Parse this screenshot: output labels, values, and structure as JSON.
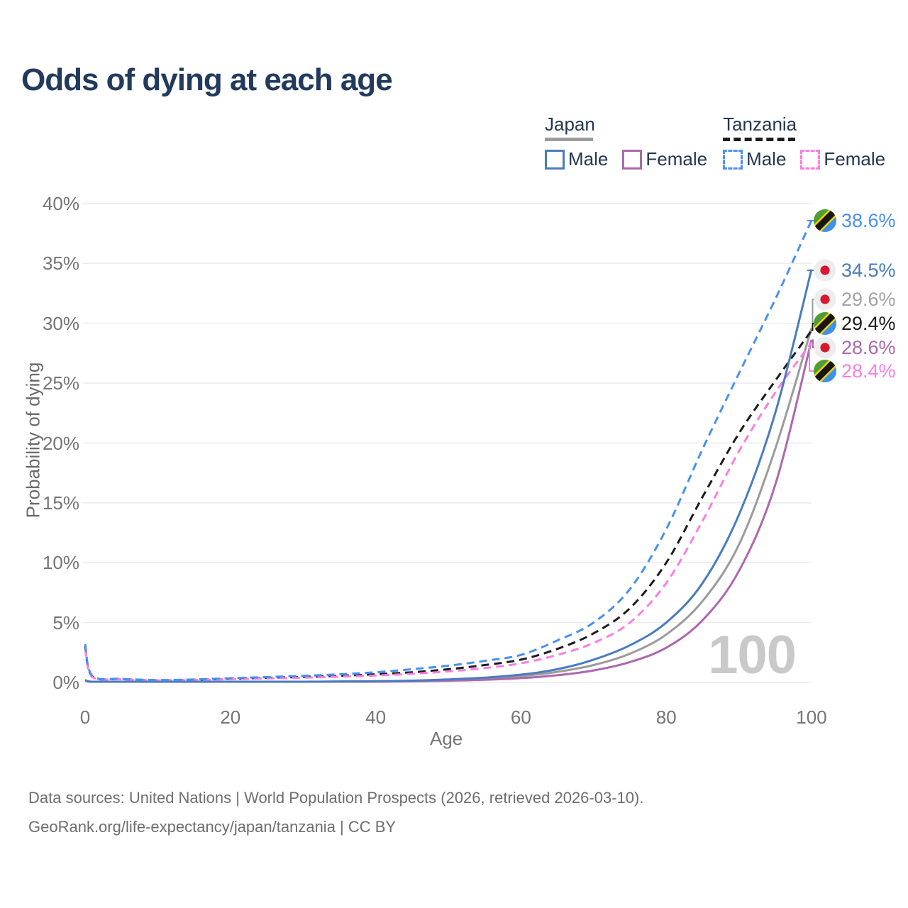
{
  "title": "Odds of dying at each age",
  "watermark_age": "100",
  "legend": {
    "groups": [
      {
        "label": "Japan",
        "line_style": "solid",
        "line_color": "#9b9b9b",
        "items": [
          {
            "label": "Male",
            "color": "#4a7cbe"
          },
          {
            "label": "Female",
            "color": "#ad68ad"
          }
        ]
      },
      {
        "label": "Tanzania",
        "line_style": "dashed",
        "line_color": "#1c1c1c",
        "items": [
          {
            "label": "Male",
            "color": "#4990f2"
          },
          {
            "label": "Female",
            "color": "#fb7de2"
          }
        ]
      }
    ]
  },
  "footer": {
    "line1": "Data sources: United Nations | World Population Prospects (2026, retrieved 2026-03-10).",
    "line2": "GeoRank.org/life-expectancy/japan/tanzania | CC BY"
  },
  "chart_data": {
    "type": "line",
    "title": "Odds of dying at each age",
    "xlabel": "Age",
    "ylabel": "Probability of dying",
    "xlim": [
      0,
      100
    ],
    "ylim": [
      0,
      40
    ],
    "x_ticks": [
      0,
      20,
      40,
      60,
      80,
      100
    ],
    "y_ticks": [
      "0%",
      "5%",
      "10%",
      "15%",
      "20%",
      "25%",
      "30%",
      "35%",
      "40%"
    ],
    "grid": "horizontal",
    "legend_position": "top-right",
    "ages": [
      0,
      1,
      5,
      10,
      15,
      20,
      25,
      30,
      35,
      40,
      45,
      50,
      55,
      60,
      65,
      70,
      75,
      80,
      85,
      90,
      95,
      100
    ],
    "series": [
      {
        "name": "Tanzania Male",
        "country": "Tanzania",
        "sex": "Male",
        "color": "#4990f2",
        "dashed": true,
        "flag": "tanzania",
        "end_label": "38.6%",
        "end_value_pct": 38.6,
        "values": [
          3.2,
          0.55,
          0.3,
          0.2,
          0.25,
          0.35,
          0.45,
          0.55,
          0.68,
          0.85,
          1.1,
          1.4,
          1.8,
          2.3,
          3.5,
          5.0,
          7.8,
          12.8,
          19.5,
          25.8,
          32.0,
          38.6
        ]
      },
      {
        "name": "Japan Male",
        "country": "Japan",
        "sex": "Male",
        "color": "#4a7cbe",
        "dashed": false,
        "flag": "japan",
        "end_label": "34.5%",
        "end_value_pct": 34.5,
        "values": [
          0.2,
          0.03,
          0.015,
          0.01,
          0.02,
          0.04,
          0.05,
          0.06,
          0.08,
          0.1,
          0.15,
          0.25,
          0.4,
          0.65,
          1.1,
          1.9,
          3.1,
          5.0,
          8.3,
          14.0,
          22.5,
          34.5
        ]
      },
      {
        "name": "Japan",
        "country": "Japan",
        "sex": "Both",
        "color": "#9b9b9b",
        "dashed": false,
        "flag": "japan",
        "end_label": "29.6%",
        "end_value_pct": 29.6,
        "label_color": "#a3a3a3",
        "values": [
          0.18,
          0.025,
          0.012,
          0.01,
          0.015,
          0.03,
          0.04,
          0.05,
          0.07,
          0.09,
          0.13,
          0.2,
          0.33,
          0.52,
          0.88,
          1.45,
          2.4,
          4.0,
          6.8,
          11.5,
          19.5,
          29.6
        ]
      },
      {
        "name": "Tanzania",
        "country": "Tanzania",
        "sex": "Both",
        "color": "#1c1c1c",
        "dashed": true,
        "flag": "tanzania",
        "end_label": "29.4%",
        "end_value_pct": 29.4,
        "values": [
          3.0,
          0.5,
          0.28,
          0.18,
          0.22,
          0.3,
          0.38,
          0.46,
          0.55,
          0.68,
          0.85,
          1.1,
          1.45,
          1.9,
          2.8,
          4.1,
          6.2,
          10.0,
          15.5,
          20.8,
          25.2,
          29.4
        ]
      },
      {
        "name": "Japan Female",
        "country": "Japan",
        "sex": "Female",
        "color": "#ad68ad",
        "dashed": false,
        "flag": "japan",
        "end_label": "28.6%",
        "end_value_pct": 28.6,
        "values": [
          0.16,
          0.02,
          0.01,
          0.008,
          0.012,
          0.02,
          0.03,
          0.03,
          0.04,
          0.06,
          0.09,
          0.14,
          0.22,
          0.36,
          0.6,
          1.0,
          1.7,
          2.9,
          5.2,
          9.3,
          16.5,
          28.6
        ]
      },
      {
        "name": "Tanzania Female",
        "country": "Tanzania",
        "sex": "Female",
        "color": "#fb7de2",
        "dashed": true,
        "flag": "tanzania",
        "end_label": "28.4%",
        "end_value_pct": 28.4,
        "values": [
          2.8,
          0.45,
          0.26,
          0.17,
          0.2,
          0.27,
          0.33,
          0.4,
          0.48,
          0.58,
          0.72,
          0.92,
          1.2,
          1.6,
          2.3,
          3.3,
          5.0,
          8.3,
          13.5,
          19.3,
          24.2,
          28.4
        ]
      }
    ]
  }
}
